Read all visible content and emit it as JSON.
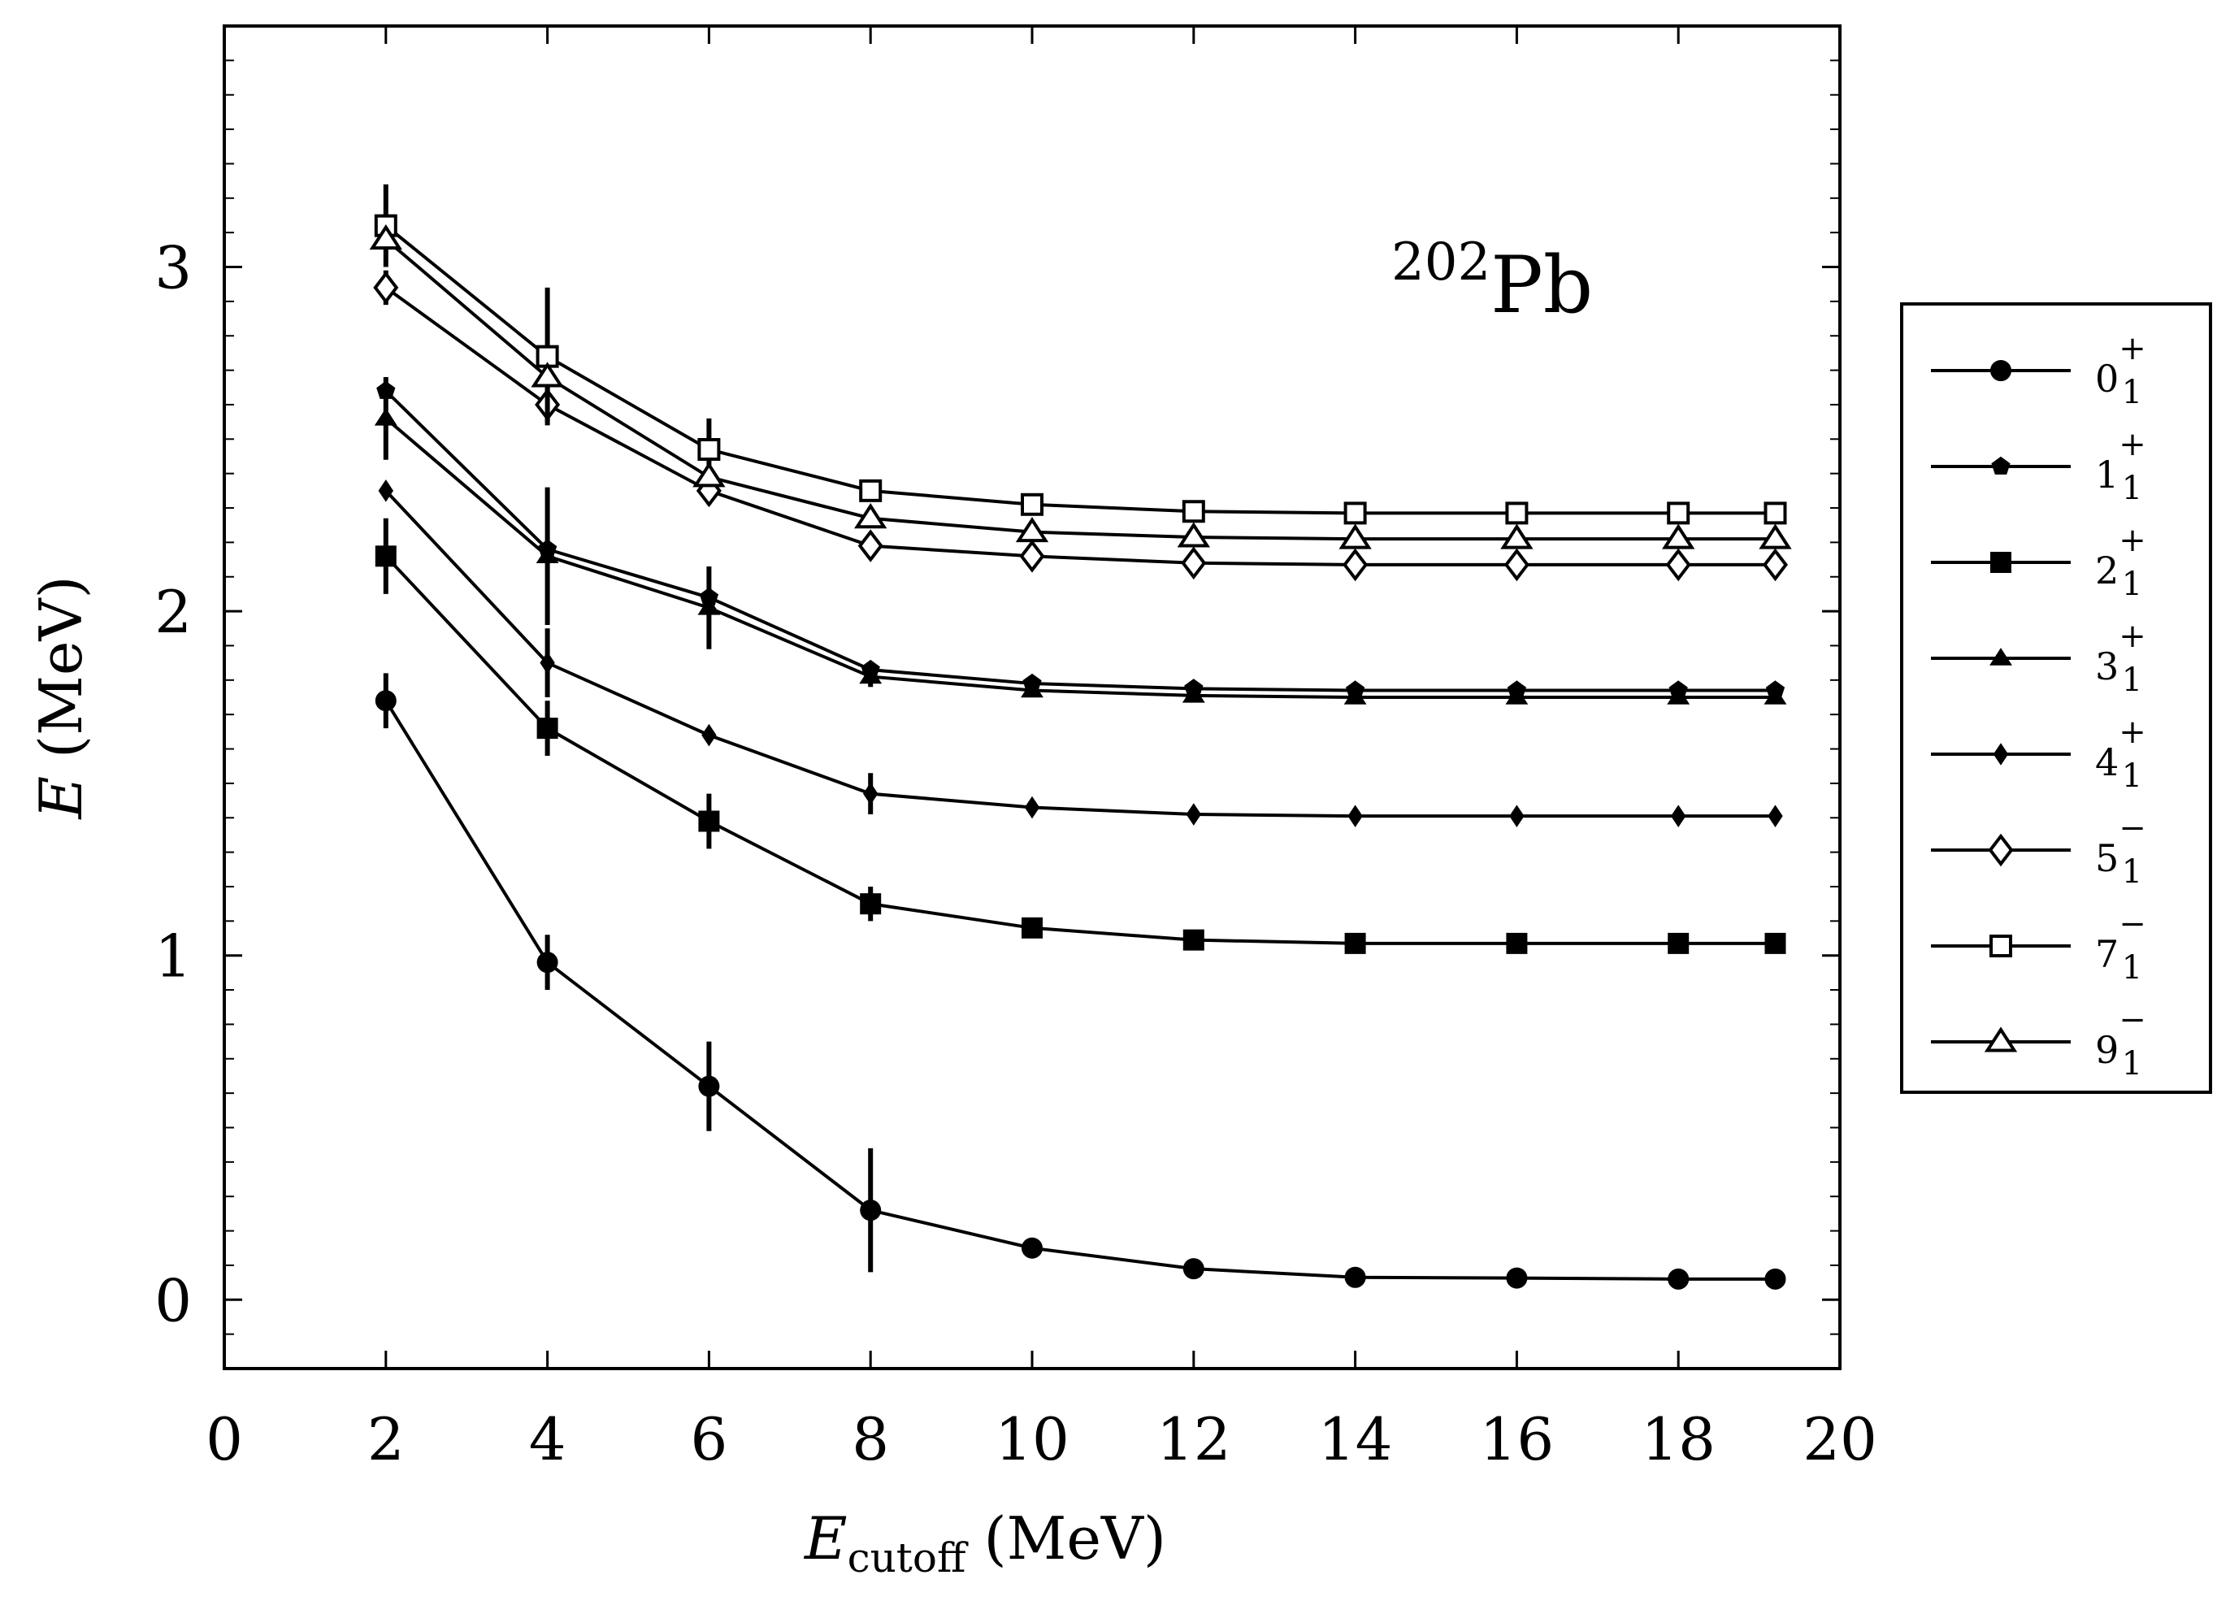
{
  "chart_data": {
    "type": "line",
    "title": "",
    "annotation": {
      "sup": "202",
      "main": "Pb"
    },
    "xlabel": {
      "main": "E",
      "sub": "cutoff",
      "unit": "(MeV)"
    },
    "ylabel": {
      "main": "E",
      "unit": "(MeV)"
    },
    "xlim": [
      0,
      20
    ],
    "ylim": [
      -0.2,
      3.7
    ],
    "xticks": [
      0,
      2,
      4,
      6,
      8,
      10,
      12,
      14,
      16,
      18,
      20
    ],
    "yticks": [
      0,
      1,
      2,
      3
    ],
    "y_minor_step": 0.1,
    "grid": false,
    "legend_position": "right",
    "x": [
      2,
      4,
      6,
      8,
      10,
      12,
      14,
      16,
      18,
      19.2
    ],
    "series": [
      {
        "name": "0",
        "sup": "+",
        "sub": "1",
        "marker": "circle-filled",
        "values": [
          1.74,
          0.98,
          0.62,
          0.26,
          0.15,
          0.09,
          0.065,
          0.063,
          0.06,
          0.06
        ],
        "errors": [
          0.08,
          0.08,
          0.13,
          0.18,
          0.02,
          0,
          0,
          0,
          0,
          0
        ]
      },
      {
        "name": "1",
        "sup": "+",
        "sub": "1",
        "marker": "pentagon-filled",
        "values": [
          2.64,
          2.18,
          2.04,
          1.83,
          1.79,
          1.775,
          1.77,
          1.77,
          1.77,
          1.77
        ],
        "errors": [
          0,
          0,
          0,
          0,
          0,
          0,
          0,
          0,
          0,
          0
        ]
      },
      {
        "name": "2",
        "sup": "+",
        "sub": "1",
        "marker": "square-filled",
        "values": [
          2.16,
          1.66,
          1.39,
          1.15,
          1.08,
          1.045,
          1.035,
          1.035,
          1.035,
          1.035
        ],
        "errors": [
          0.11,
          0.08,
          0.08,
          0.05,
          0,
          0,
          0,
          0,
          0,
          0
        ]
      },
      {
        "name": "3",
        "sup": "+",
        "sub": "1",
        "marker": "triangle-filled",
        "values": [
          2.56,
          2.16,
          2.01,
          1.81,
          1.77,
          1.755,
          1.75,
          1.75,
          1.75,
          1.75
        ],
        "errors": [
          0.12,
          0.2,
          0.12,
          0.03,
          0,
          0,
          0,
          0,
          0,
          0
        ]
      },
      {
        "name": "4",
        "sup": "+",
        "sub": "1",
        "marker": "diamond-filled",
        "values": [
          2.35,
          1.85,
          1.64,
          1.47,
          1.43,
          1.41,
          1.405,
          1.405,
          1.405,
          1.405
        ],
        "errors": [
          0,
          0.1,
          0,
          0.06,
          0,
          0,
          0,
          0,
          0,
          0
        ]
      },
      {
        "name": "5",
        "sup": "−",
        "sub": "1",
        "marker": "diamond-open",
        "values": [
          2.94,
          2.6,
          2.35,
          2.19,
          2.16,
          2.14,
          2.135,
          2.135,
          2.135,
          2.135
        ],
        "errors": [
          0.05,
          0.05,
          0.04,
          0,
          0,
          0,
          0,
          0,
          0,
          0
        ]
      },
      {
        "name": "7",
        "sup": "−",
        "sub": "1",
        "marker": "square-open",
        "values": [
          3.12,
          2.74,
          2.47,
          2.35,
          2.31,
          2.29,
          2.285,
          2.285,
          2.285,
          2.285
        ],
        "errors": [
          0.12,
          0.2,
          0.09,
          0.03,
          0.02,
          0,
          0,
          0,
          0,
          0
        ]
      },
      {
        "name": "9",
        "sup": "−",
        "sub": "1",
        "marker": "triangle-open",
        "values": [
          3.08,
          2.68,
          2.39,
          2.27,
          2.23,
          2.215,
          2.21,
          2.21,
          2.21,
          2.21
        ],
        "errors": [
          0,
          0,
          0,
          0,
          0,
          0,
          0,
          0,
          0,
          0
        ]
      }
    ]
  }
}
